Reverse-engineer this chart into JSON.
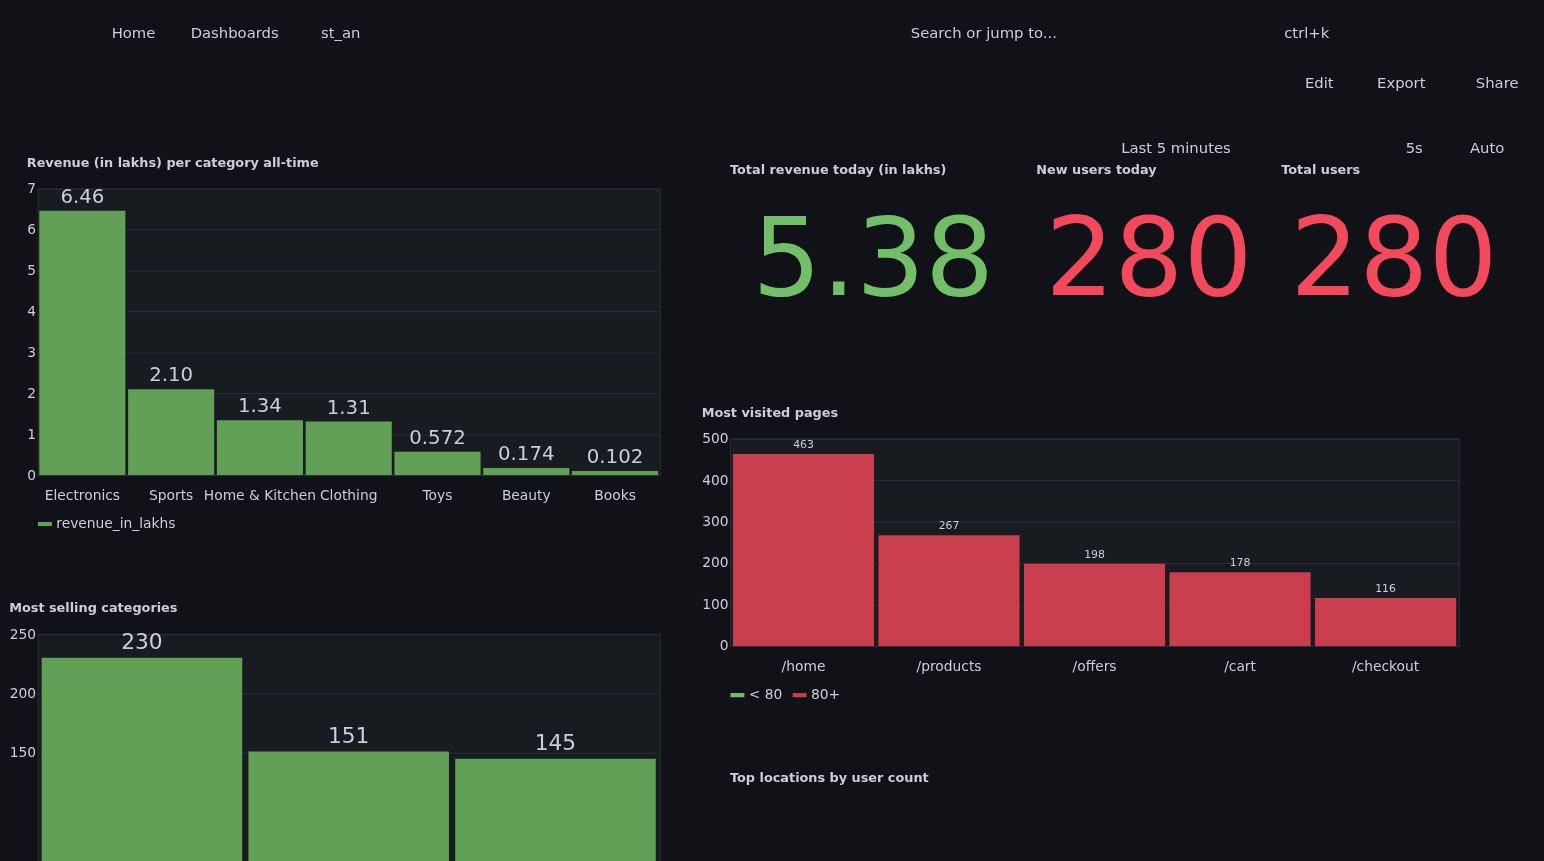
{
  "chart_data": [
    {
      "type": "other",
      "annotations": [
        "Home",
        "Dashboards",
        "st_an",
        "Search or jump to...",
        "ctrl+k",
        "Edit",
        "Export",
        "Share",
        "Last 5 minutes",
        "5s",
        "Auto"
      ]
    },
    {
      "type": "bar",
      "title": "Revenue (in lakhs) per category all-time",
      "categories": [
        "Electronics",
        "Sports",
        "Home & Kitchen",
        "Clothing",
        "Toys",
        "Beauty",
        "Books"
      ],
      "series": [
        {
          "name": "revenue_in_lakhs",
          "color": "#629f57",
          "values": [
            6.46,
            2.1,
            1.34,
            1.31,
            0.572,
            0.174,
            0.102
          ],
          "value_labels": [
            "6.46",
            "2.10",
            "1.34",
            "1.31",
            "0.572",
            "0.174",
            "0.102"
          ]
        }
      ],
      "ylim": [
        0,
        7
      ],
      "yticks": [
        0,
        1,
        2,
        3,
        4,
        5,
        6,
        7
      ],
      "grid": "y",
      "legend": "bottom left"
    },
    {
      "type": "other",
      "title": "Total revenue today (in lakhs)",
      "values": [
        5.38
      ],
      "colors": [
        "#73bf69"
      ],
      "data_labels": true
    },
    {
      "type": "other",
      "title": "New users today",
      "values": [
        280
      ],
      "colors": [
        "#f2495c"
      ],
      "data_labels": true
    },
    {
      "type": "other",
      "title": "Total users",
      "values": [
        280
      ],
      "colors": [
        "#f2495c"
      ],
      "data_labels": true
    },
    {
      "type": "bar",
      "title": "Most visited pages",
      "categories": [
        "/home",
        "/products",
        "/offers",
        "/cart",
        "/checkout"
      ],
      "series": [
        {
          "name": "< 80",
          "color": "#73bf69",
          "values": [
            null,
            null,
            null,
            null,
            null
          ]
        },
        {
          "name": "80+",
          "color": "#c93e4d",
          "values": [
            463,
            267,
            198,
            178,
            116
          ]
        }
      ],
      "ylim": [
        0,
        500
      ],
      "yticks": [
        0,
        100,
        200,
        300,
        400,
        500
      ],
      "grid": "y",
      "legend": "bottom left",
      "data_labels": true
    },
    {
      "type": "bar",
      "title": "Most selling categories",
      "categories": [
        null,
        null,
        null
      ],
      "series": [
        {
          "color": "#629f57",
          "values": [
            230,
            151,
            145
          ]
        }
      ],
      "ylim": [
        0,
        250
      ],
      "yticks": [
        150,
        200,
        250
      ],
      "grid": "y",
      "data_labels": true
    },
    {
      "type": "other",
      "title": "Top locations by user count"
    }
  ]
}
